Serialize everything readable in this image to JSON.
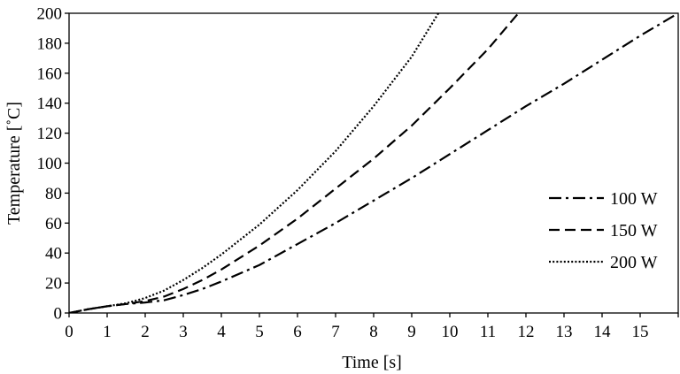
{
  "chart_data": {
    "type": "line",
    "title": "",
    "xlabel": "Time [s]",
    "ylabel": "Temperature [˚C]",
    "xlim": [
      0,
      16
    ],
    "ylim": [
      0,
      200
    ],
    "xticks": [
      "0",
      "1",
      "2",
      "3",
      "4",
      "5",
      "6",
      "7",
      "8",
      "9",
      "10",
      "11",
      "12",
      "13",
      "14",
      "15"
    ],
    "yticks": [
      "0",
      "20",
      "40",
      "60",
      "80",
      "100",
      "120",
      "140",
      "160",
      "180",
      "200"
    ],
    "grid": false,
    "legend_position": "right",
    "series": [
      {
        "name": "100 W",
        "style": "dash-dot",
        "color": "#000000",
        "x": [
          0,
          0.5,
          1,
          1.5,
          2,
          2.5,
          3,
          3.5,
          4,
          5,
          6,
          7,
          8,
          9,
          10,
          11,
          12,
          13,
          14,
          15,
          16
        ],
        "y": [
          0,
          2.5,
          4.5,
          6,
          7,
          8.5,
          12,
          16,
          21,
          32,
          46,
          60,
          75,
          90,
          106,
          122,
          138,
          153,
          169,
          185,
          200
        ]
      },
      {
        "name": "150 W",
        "style": "dashed",
        "color": "#000000",
        "x": [
          0,
          0.5,
          1,
          1.5,
          2,
          2.5,
          3,
          3.5,
          4,
          5,
          6,
          7,
          8,
          9,
          10,
          11,
          11.8
        ],
        "y": [
          0,
          2.5,
          4.5,
          6,
          8,
          11,
          16,
          22,
          29,
          45,
          63,
          83,
          103,
          125,
          150,
          176,
          200
        ]
      },
      {
        "name": "200 W",
        "style": "dotted",
        "color": "#000000",
        "x": [
          0,
          0.5,
          1,
          1.5,
          2,
          2.5,
          3,
          3.5,
          4,
          5,
          6,
          7,
          8,
          9,
          9.7
        ],
        "y": [
          0,
          2.5,
          4.5,
          6.5,
          10,
          15,
          22,
          30,
          39,
          59,
          82,
          108,
          138,
          171,
          200
        ]
      }
    ]
  }
}
